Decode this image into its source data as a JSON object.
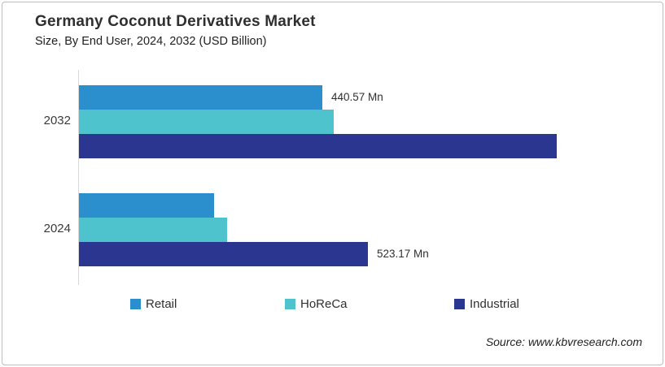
{
  "header": {
    "title": "Germany Coconut Derivatives Market",
    "subtitle": "Size, By End User, 2024, 2032 (USD Billion)"
  },
  "source": {
    "credit": "Source: www.kbvresearch.com"
  },
  "chart_data": {
    "type": "bar",
    "orientation": "horizontal",
    "unit": "Mn",
    "categories": [
      "2032",
      "2024"
    ],
    "series": [
      {
        "name": "Retail",
        "color": "#2B8FCE",
        "values": [
          440.57,
          245
        ]
      },
      {
        "name": "HoReCa",
        "color": "#4EC3CE",
        "values": [
          461,
          268
        ]
      },
      {
        "name": "Industrial",
        "color": "#2B3690",
        "values": [
          864,
          523.17
        ]
      }
    ],
    "data_labels": [
      {
        "series": "Retail",
        "category": "2032",
        "text": "440.57 Mn"
      },
      {
        "series": "Industrial",
        "category": "2024",
        "text": "523.17 Mn"
      }
    ],
    "legend": [
      "Retail",
      "HoReCa",
      "Industrial"
    ],
    "legend_position": "bottom",
    "grid": false,
    "value_axis_visible": false,
    "approx_value_axis_max_mn": 1050
  }
}
